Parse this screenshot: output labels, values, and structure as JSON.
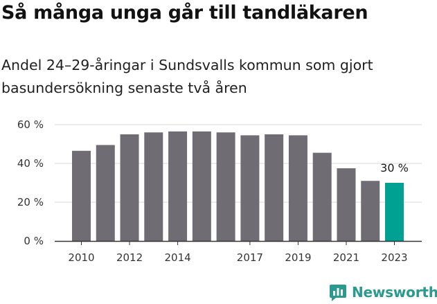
{
  "title": "Så många unga går till tandläkaren",
  "subtitle": "Andel 24–29-åringar i Sundsvalls kommun som gjort basundersökning senaste två åren",
  "brand": {
    "name": "Newsworthy",
    "icon": "newsworthy-logo-icon",
    "color": "#2a9a8e"
  },
  "chart_data": {
    "type": "bar",
    "title": "Så många unga går till tandläkaren",
    "subtitle": "Andel 24–29-åringar i Sundsvalls kommun som gjort basundersökning senaste två åren",
    "categories": [
      "2010",
      "2011",
      "2012",
      "2013",
      "2014",
      "2015",
      "2016",
      "2017",
      "2018",
      "2019",
      "2020",
      "2021",
      "2022",
      "2023"
    ],
    "values": [
      46.5,
      49.5,
      55,
      56,
      56.5,
      56.5,
      56,
      54.5,
      55,
      54.5,
      45.5,
      37.5,
      31,
      30
    ],
    "x_tick_labels": [
      "2010",
      "2012",
      "2014",
      "2017",
      "2019",
      "2021",
      "2023"
    ],
    "y_ticks": [
      0,
      20,
      40,
      60
    ],
    "y_tick_labels": [
      "0 %",
      "20 %",
      "40 %",
      "60 %"
    ],
    "ylim": [
      0,
      62
    ],
    "grid": true,
    "colors": {
      "bar": "#6f6d73",
      "highlight": "#00a093",
      "grid": "#d9d9d9",
      "axis": "#333333"
    },
    "highlight_index": 13,
    "annotations": [
      {
        "category": "2023",
        "text": "30 %"
      }
    ],
    "xlabel": "",
    "ylabel": ""
  }
}
